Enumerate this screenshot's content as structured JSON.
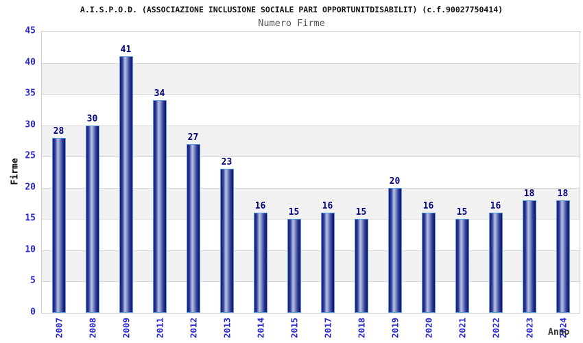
{
  "header": {
    "title": "A.I.S.P.O.D. (ASSOCIAZIONE INCLUSIONE SOCIALE PARI OPPORTUNITDISABILIT) (c.f.90027750414)",
    "subtitle": "Numero Firme"
  },
  "chart_data": {
    "type": "bar",
    "title": "A.I.S.P.O.D. (ASSOCIAZIONE INCLUSIONE SOCIALE PARI OPPORTUNITDISABILIT) (c.f.90027750414)",
    "subtitle": "Numero Firme",
    "categories": [
      "2007",
      "2008",
      "2009",
      "2011",
      "2012",
      "2013",
      "2014",
      "2015",
      "2017",
      "2018",
      "2019",
      "2020",
      "2021",
      "2022",
      "2023",
      "2024"
    ],
    "values": [
      28,
      30,
      41,
      34,
      27,
      23,
      16,
      15,
      16,
      15,
      20,
      16,
      15,
      16,
      18,
      18
    ],
    "xlabel": "Anno",
    "ylabel": "Firme",
    "ylim": [
      0,
      45
    ],
    "ytick_interval": 5,
    "grid": true,
    "legend": "none",
    "band_colors": [
      "#ffffff",
      "#f1f1f1"
    ]
  },
  "colors": {
    "tick_label": "#2727cf",
    "value_label": "#000078",
    "bar_dark": "#191979",
    "bar_light": "#b7c1e2",
    "bar_border": "#5b9ddb",
    "gridline": "#d9d9d9",
    "plot_border": "#cccccc",
    "band_alt": "#f1f1f1",
    "subtitle_text": "#555555"
  }
}
